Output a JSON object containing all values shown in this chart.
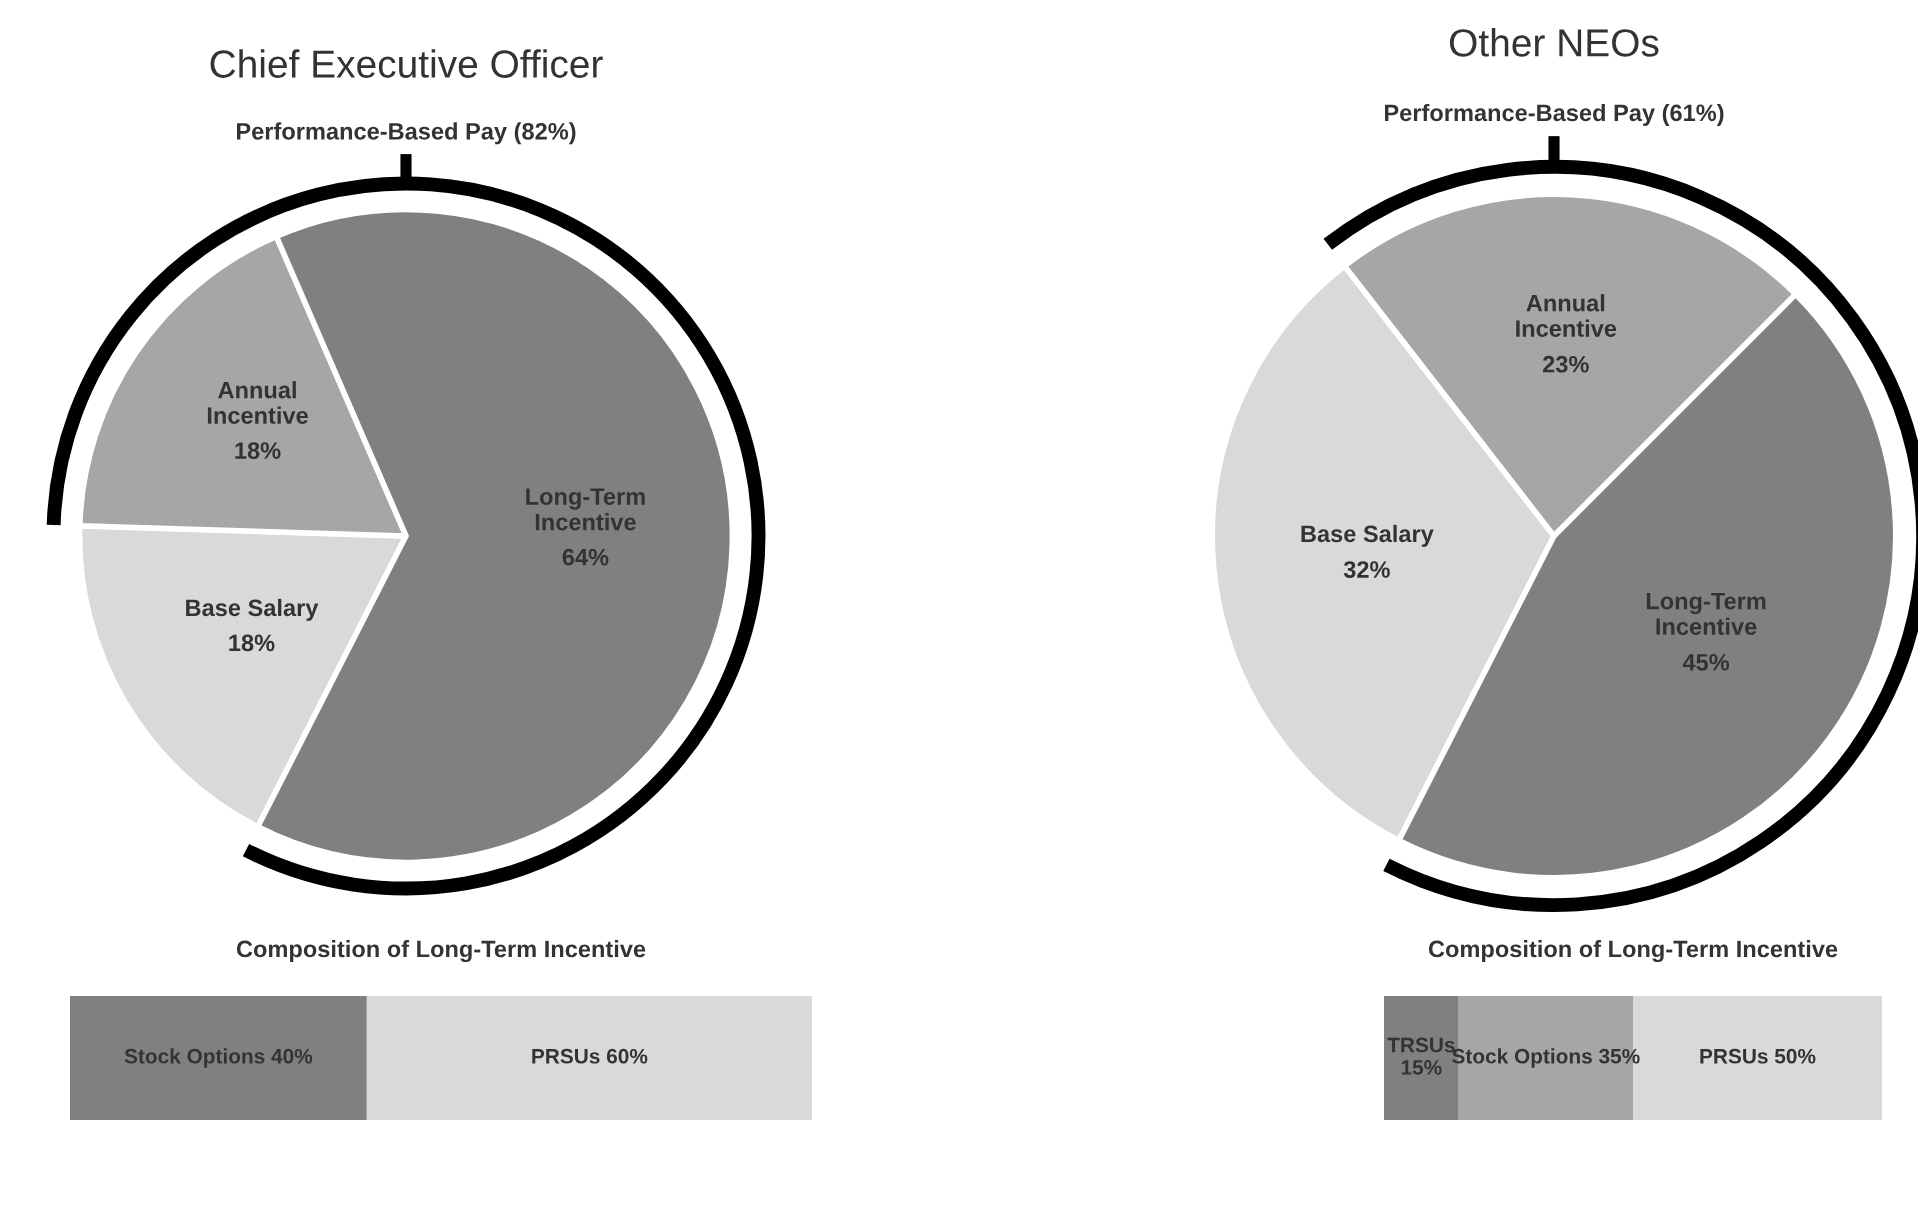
{
  "chart_data": [
    {
      "type": "pie",
      "title": "Chief Executive Officer",
      "annotations": [
        "Performance-Based Pay (82%)"
      ],
      "categories": [
        "Base Salary",
        "Annual\nIncentive",
        "Long-Term\nIncentive"
      ],
      "values": [
        18,
        18,
        64
      ],
      "colors": [
        "#d9d9d9",
        "#a6a6a6",
        "#808080"
      ],
      "value_labels": [
        "18%",
        "18%",
        "64%"
      ]
    },
    {
      "type": "pie",
      "title": "Other NEOs",
      "annotations": [
        "Performance-Based Pay (61%)"
      ],
      "categories": [
        "Base Salary",
        "Annual\nIncentive",
        "Long-Term\nIncentive"
      ],
      "values": [
        32,
        23,
        45
      ],
      "colors": [
        "#d9d9d9",
        "#a6a6a6",
        "#808080"
      ],
      "value_labels": [
        "32%",
        "23%",
        "45%"
      ]
    },
    {
      "type": "bar",
      "orientation": "horizontal",
      "stacked": true,
      "title": "Composition of Long-Term Incentive",
      "categories": [
        null
      ],
      "tick_labels": false,
      "series": [
        {
          "color": "#808080",
          "values": [
            40
          ],
          "value_labels": [
            "Stock Options 40%"
          ]
        },
        {
          "color": "#d9d9d9",
          "values": [
            60
          ],
          "value_labels": [
            "PRSUs 60%"
          ]
        }
      ]
    },
    {
      "type": "bar",
      "orientation": "horizontal",
      "stacked": true,
      "title": "Composition of Long-Term Incentive",
      "categories": [
        null
      ],
      "tick_labels": false,
      "series": [
        {
          "color": "#808080",
          "values": [
            15
          ],
          "value_labels": [
            "TRSUs\n15%"
          ]
        },
        {
          "color": "#a6a6a6",
          "values": [
            35
          ],
          "value_labels": [
            "Stock Options 35%"
          ]
        },
        {
          "color": "#d9d9d9",
          "values": [
            50
          ],
          "value_labels": [
            "PRSUs 50%"
          ]
        }
      ]
    }
  ]
}
